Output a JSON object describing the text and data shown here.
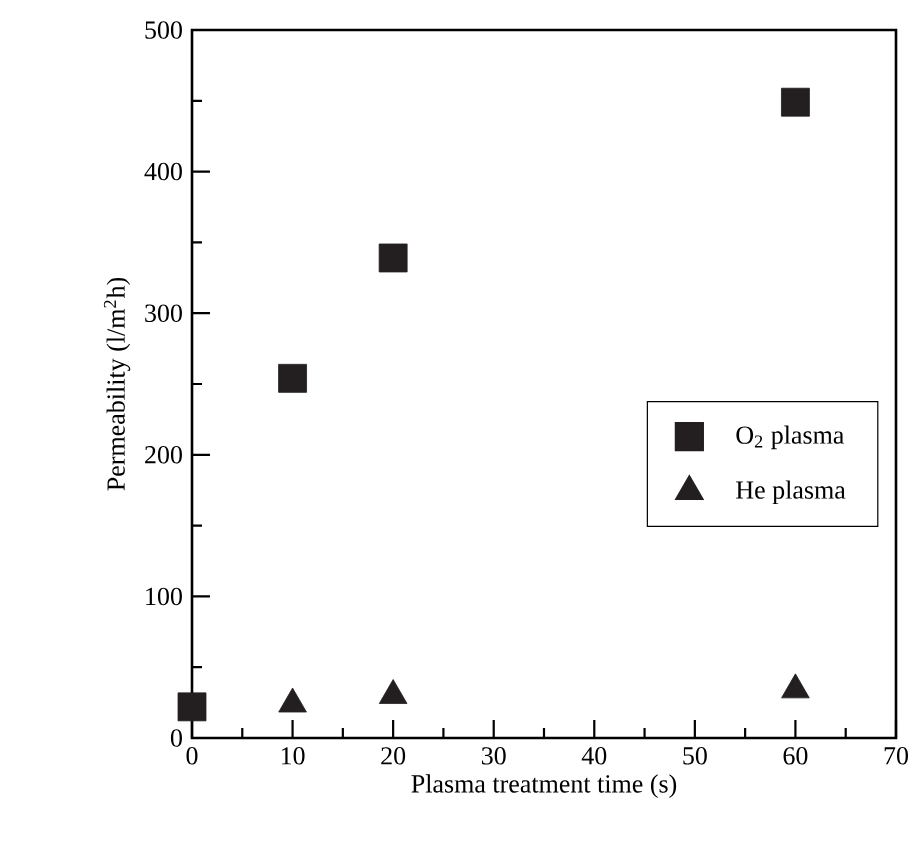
{
  "chart_data": {
    "type": "scatter",
    "xlabel": "Plasma treatment time (s)",
    "ylabel": "Permeability (l/m$^{2}$h)",
    "x": [
      0,
      10,
      20,
      60
    ],
    "series": [
      {
        "name": "O$_{2}$ plasma",
        "color": "#231f20",
        "marker": "square",
        "values": [
          22,
          254,
          339,
          449
        ]
      },
      {
        "name": "He plasma",
        "color": "#231f20",
        "marker": "triangle",
        "values": [
          null,
          24,
          30,
          34
        ]
      }
    ],
    "xlim": [
      0,
      70
    ],
    "xticks": [
      0,
      10,
      20,
      30,
      40,
      50,
      60,
      70
    ],
    "ylim": [
      0,
      500
    ],
    "yticks": [
      0,
      100,
      200,
      300,
      400,
      500
    ],
    "grid": false,
    "legend": "right"
  }
}
